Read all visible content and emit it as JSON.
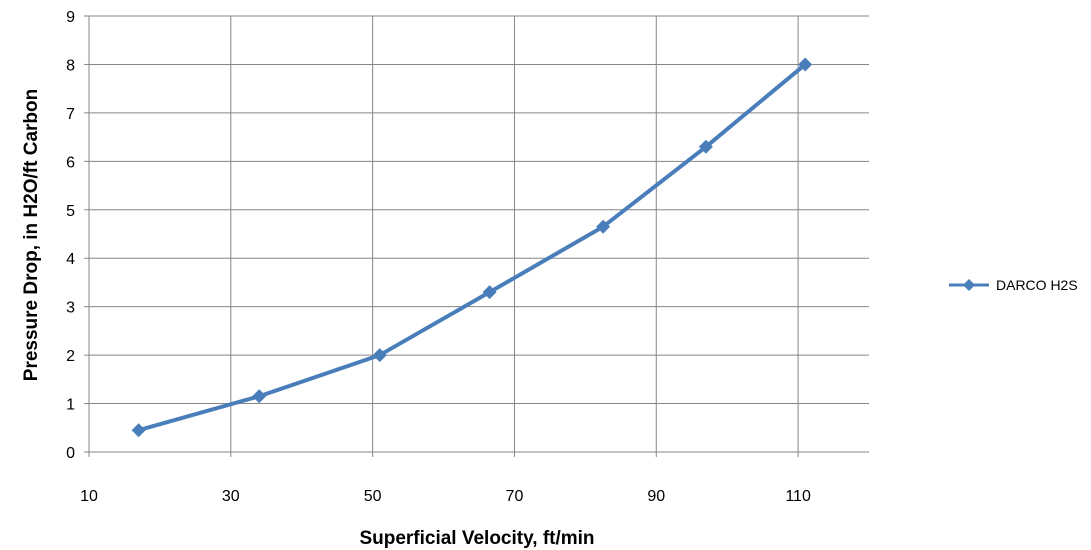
{
  "chart_data": {
    "type": "line",
    "title": "",
    "xlabel": "Superficial Velocity, ft/min",
    "ylabel": "Pressure Drop, in H2O/ft Carbon",
    "xlim": [
      10,
      120
    ],
    "ylim": [
      0,
      9
    ],
    "xticks": [
      10,
      30,
      50,
      70,
      90,
      110
    ],
    "yticks": [
      0,
      1,
      2,
      3,
      4,
      5,
      6,
      7,
      8,
      9
    ],
    "grid": true,
    "legend_position": "right",
    "series": [
      {
        "name": "DARCO H2S",
        "color": "#4a7ebb",
        "marker": "diamond",
        "x": [
          17,
          34,
          51,
          66.5,
          82.5,
          97,
          111
        ],
        "y": [
          0.45,
          1.15,
          2.0,
          3.3,
          4.65,
          6.3,
          8.0
        ]
      }
    ]
  }
}
